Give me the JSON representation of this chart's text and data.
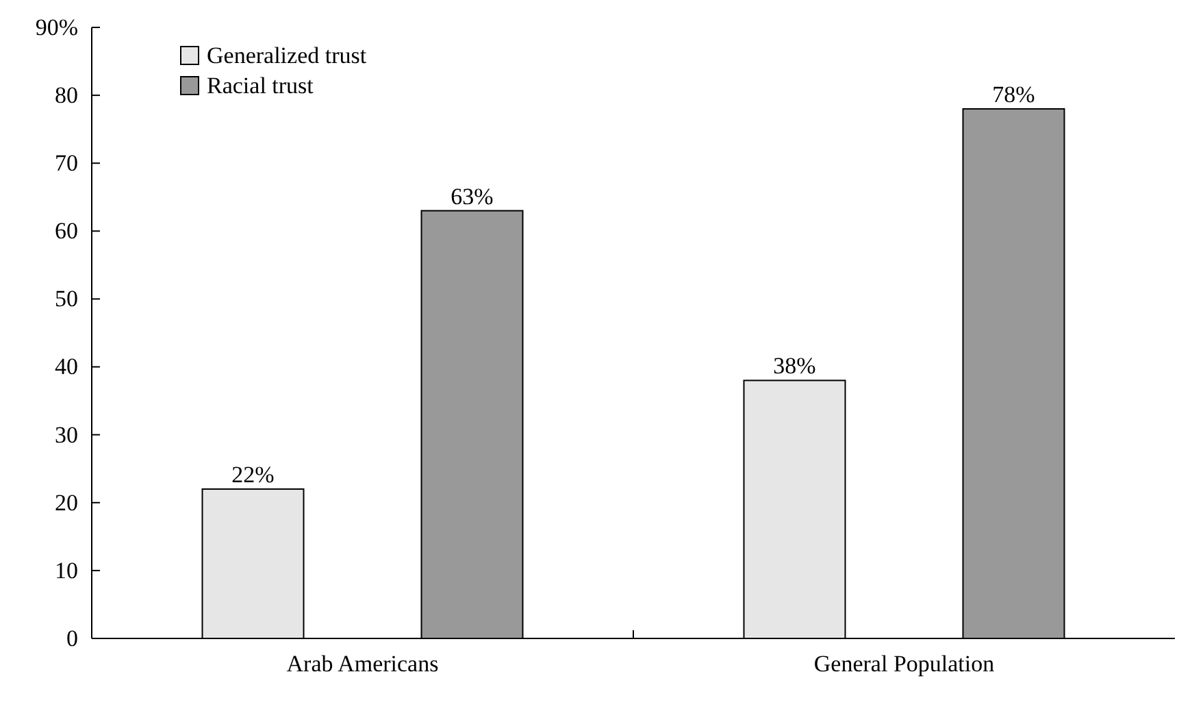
{
  "chart_data": {
    "type": "bar",
    "categories": [
      "Arab Americans",
      "General Population"
    ],
    "series": [
      {
        "name": "Generalized trust",
        "color": "#e6e6e6",
        "values": [
          22,
          38
        ],
        "value_labels": [
          "22%",
          "38%"
        ]
      },
      {
        "name": "Racial trust",
        "color": "#999999",
        "values": [
          63,
          78
        ],
        "value_labels": [
          "63%",
          "78%"
        ]
      }
    ],
    "ylim": [
      0,
      90
    ],
    "yticks": [
      0,
      10,
      20,
      30,
      40,
      50,
      60,
      70,
      80,
      {
        "value": 90,
        "label": "90%"
      }
    ],
    "grid": false,
    "legend": "top left"
  }
}
